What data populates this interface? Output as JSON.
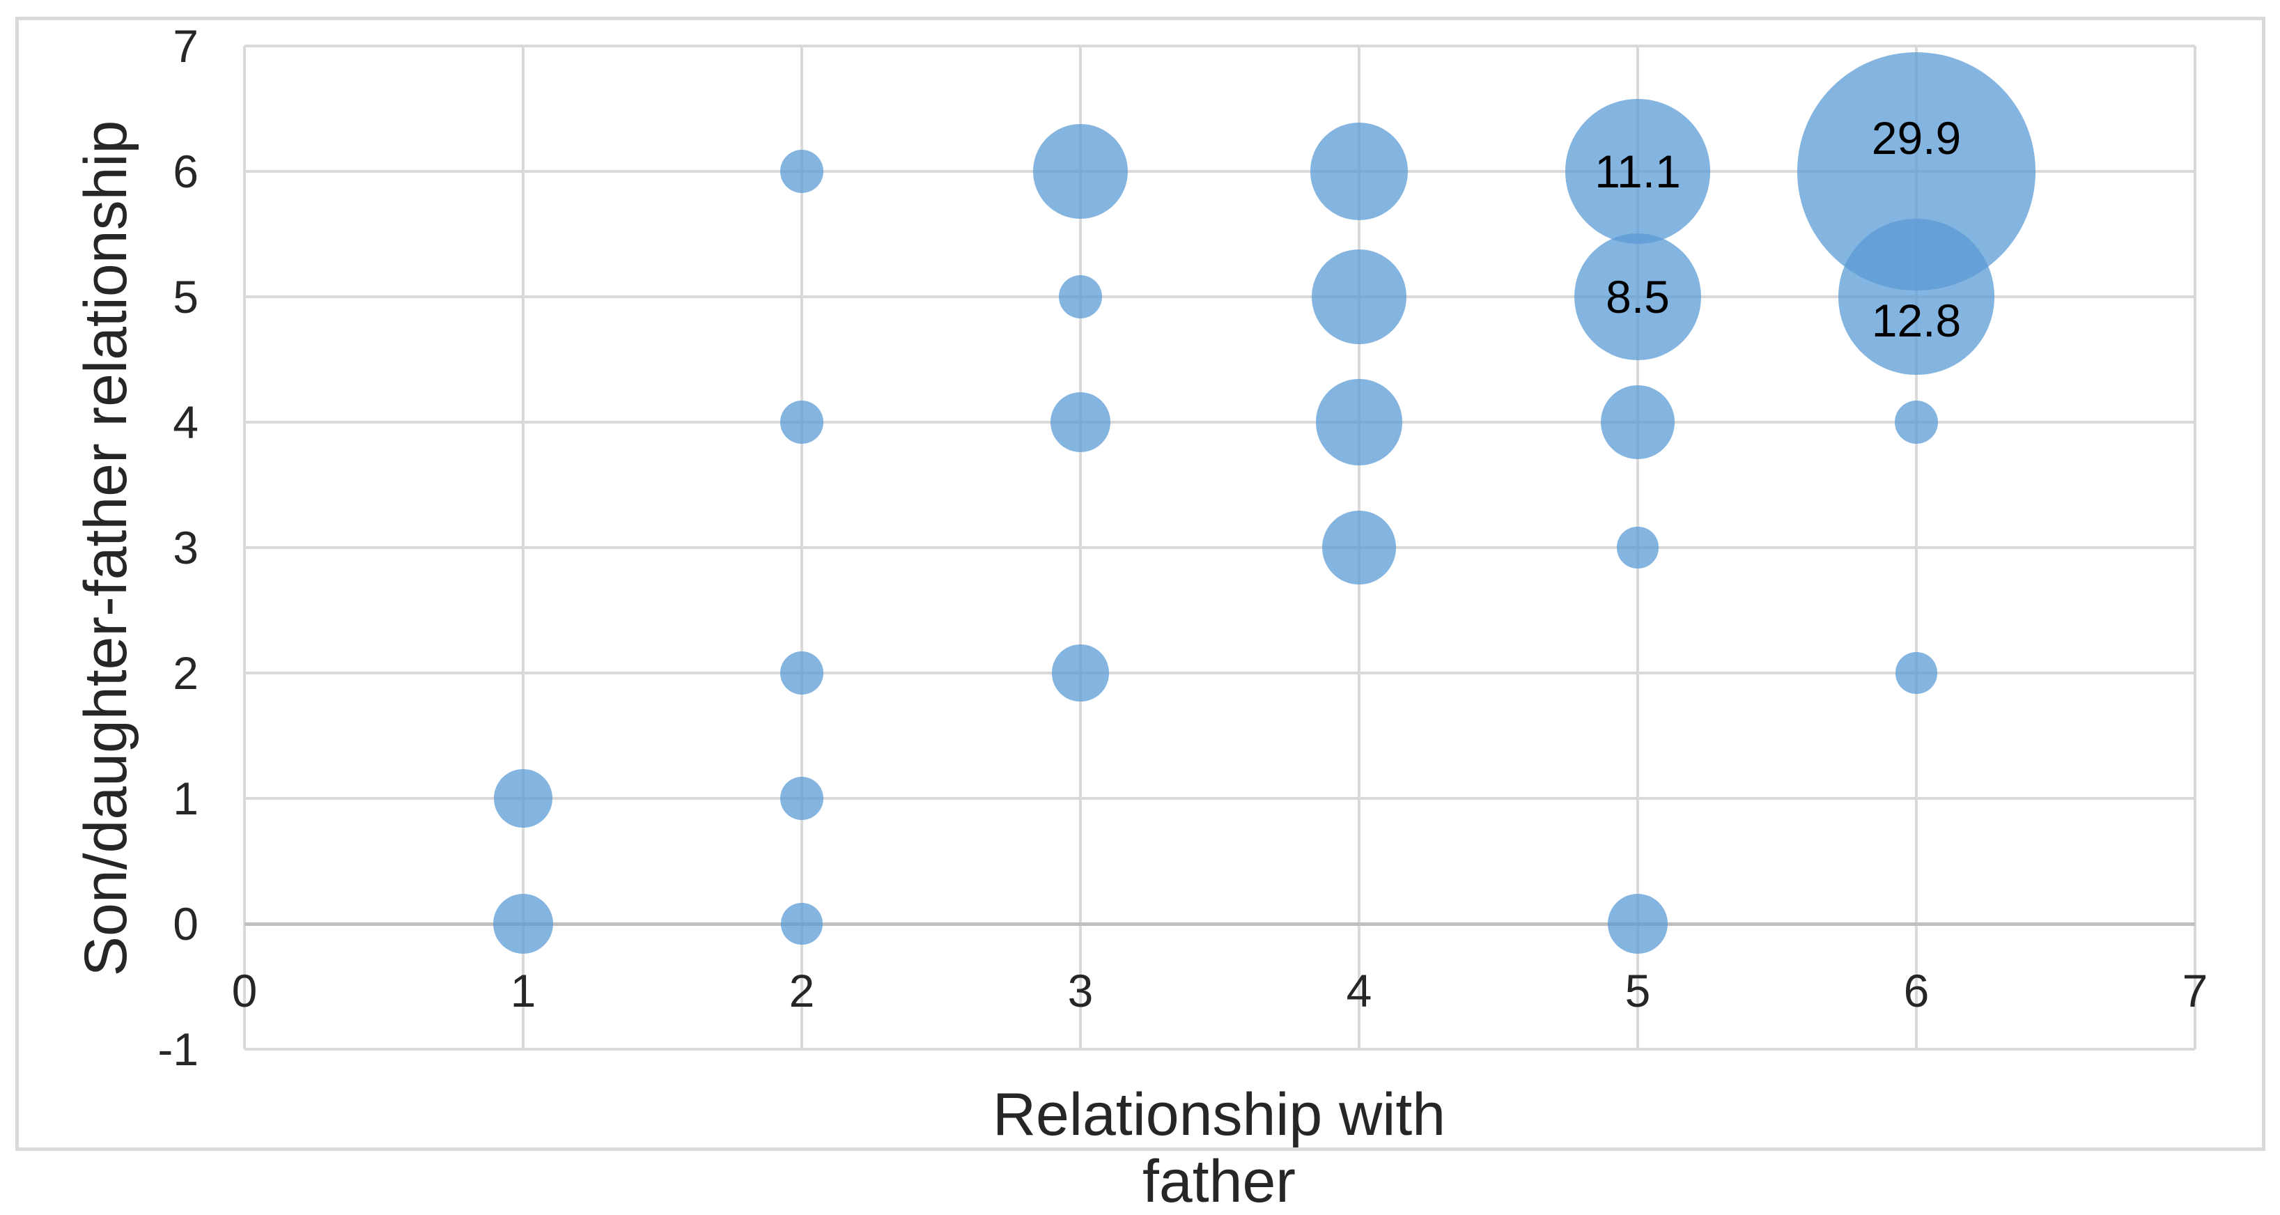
{
  "chart_data": {
    "type": "bubble",
    "title": "",
    "xlabel": "Relationship with father",
    "ylabel": "Son/daughter-father relationship",
    "x_ticks": [
      "0",
      "1",
      "2",
      "3",
      "4",
      "5",
      "6",
      "7"
    ],
    "y_ticks": [
      "7",
      "6",
      "5",
      "4",
      "3",
      "2",
      "1",
      "0",
      "-1"
    ],
    "xlim": [
      0,
      7
    ],
    "ylim": [
      -1,
      7
    ],
    "grid": true,
    "legend": false,
    "series": [
      {
        "name": "",
        "points": [
          {
            "x": 1,
            "y": 0,
            "v": 1.9
          },
          {
            "x": 1,
            "y": 1,
            "v": 1.8
          },
          {
            "x": 2,
            "y": 0,
            "v": 0.9
          },
          {
            "x": 2,
            "y": 1,
            "v": 1.0
          },
          {
            "x": 2,
            "y": 2,
            "v": 1.0
          },
          {
            "x": 2,
            "y": 4,
            "v": 1.0
          },
          {
            "x": 2,
            "y": 6,
            "v": 1.0
          },
          {
            "x": 3,
            "y": 2,
            "v": 1.7
          },
          {
            "x": 3,
            "y": 4,
            "v": 1.9
          },
          {
            "x": 3,
            "y": 5,
            "v": 1.0
          },
          {
            "x": 3,
            "y": 6,
            "v": 4.8
          },
          {
            "x": 4,
            "y": 3,
            "v": 2.9
          },
          {
            "x": 4,
            "y": 4,
            "v": 3.9
          },
          {
            "x": 4,
            "y": 5,
            "v": 4.8
          },
          {
            "x": 4,
            "y": 6,
            "v": 5.0
          },
          {
            "x": 5,
            "y": 0,
            "v": 1.9
          },
          {
            "x": 5,
            "y": 3,
            "v": 0.9
          },
          {
            "x": 5,
            "y": 4,
            "v": 2.9
          },
          {
            "x": 5,
            "y": 5,
            "v": 8.5,
            "label": "8.5",
            "dy": 0
          },
          {
            "x": 5,
            "y": 6,
            "v": 11.1,
            "label": "11.1",
            "dy": 0
          },
          {
            "x": 6,
            "y": 2,
            "v": 0.9
          },
          {
            "x": 6,
            "y": 4,
            "v": 1.0
          },
          {
            "x": 6,
            "y": 5,
            "v": 12.8,
            "label": "12.8",
            "dy": 34
          },
          {
            "x": 6,
            "y": 6,
            "v": 29.9,
            "label": "29.9",
            "dy": -48
          }
        ]
      }
    ],
    "colors": {
      "bubble_fill": "#5b9bd5",
      "bubble_opacity": 0.75,
      "gridline": "#d9d9d9",
      "axis_line": "#bfbfbf",
      "text": "#262626",
      "data_label_text": "#000000",
      "chart_border": "#d9d9d9",
      "background": "#ffffff"
    }
  }
}
